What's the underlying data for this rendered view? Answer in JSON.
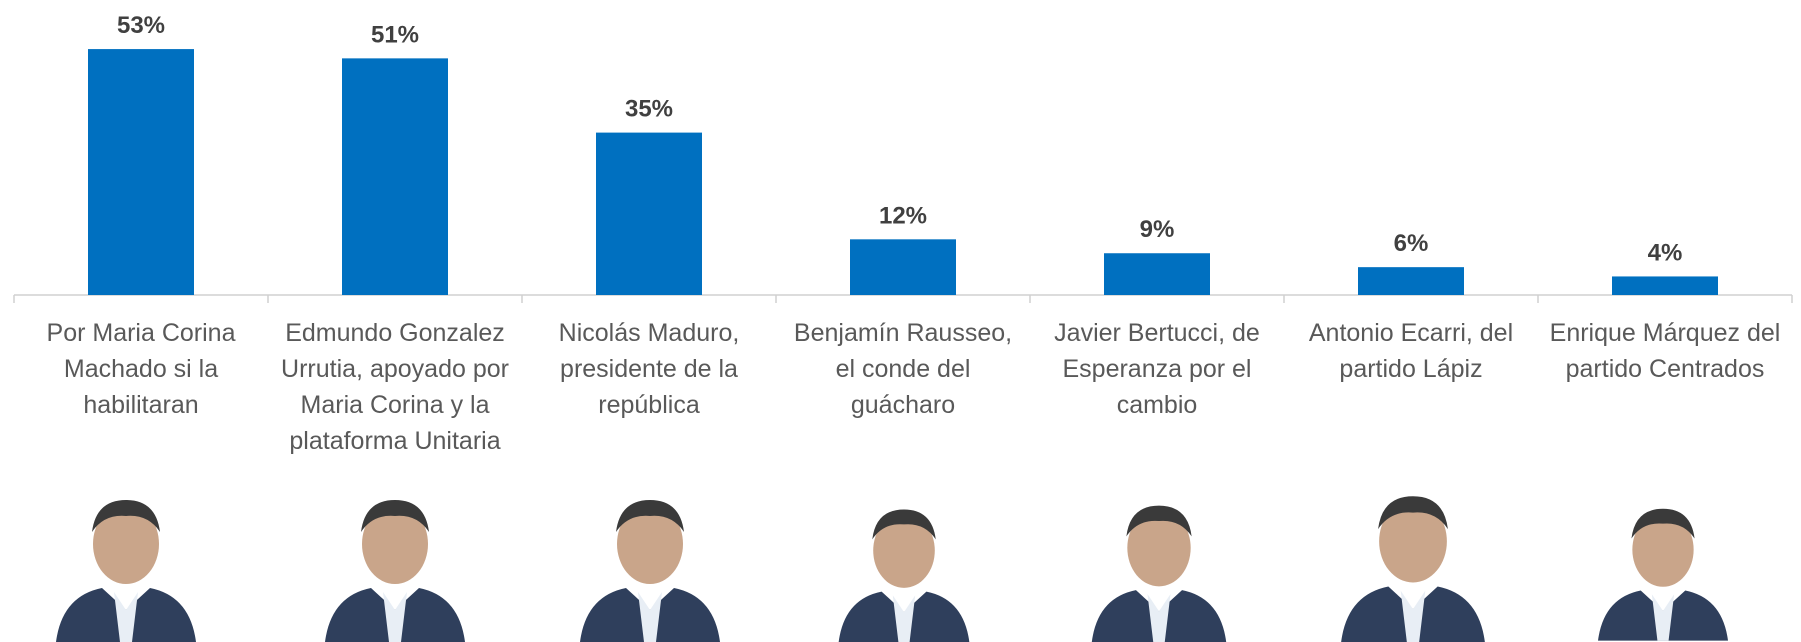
{
  "chart_data": {
    "type": "bar",
    "categories": [
      "Por Maria Corina Machado si la habilitaran",
      "Edmundo Gonzalez Urrutia, apoyado por Maria Corina y la plataforma Unitaria",
      "Nicolás Maduro, presidente de la república",
      "Benjamín Rausseo, el conde del guácharo",
      "Javier Bertucci, de Esperanza por el cambio",
      "Antonio Ecarri, del partido Lápiz",
      "Enrique Márquez del partido Centrados"
    ],
    "values": [
      53,
      51,
      35,
      12,
      9,
      6,
      4
    ],
    "value_labels": [
      "53%",
      "51%",
      "35%",
      "12%",
      "9%",
      "6%",
      "4%"
    ],
    "color": "#0070c0"
  }
}
